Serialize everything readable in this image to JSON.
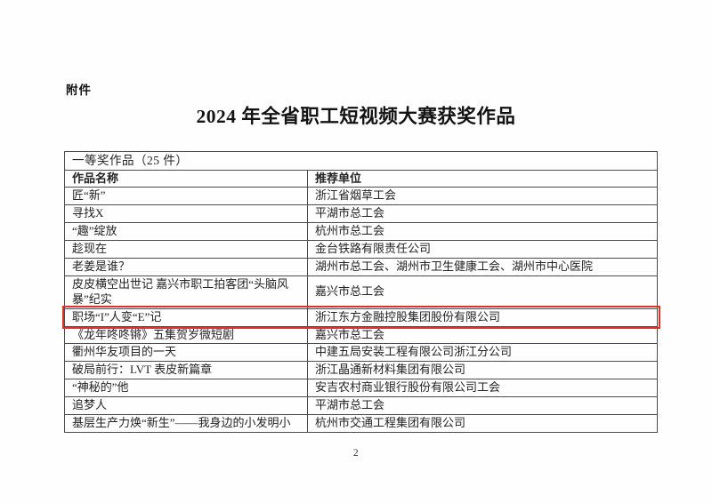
{
  "page": {
    "attachment_label": "附件",
    "title": "2024 年全省职工短视频大赛获奖作品",
    "page_number": "2"
  },
  "colors": {
    "highlight_box_red": "#de3226",
    "table_border": "#4c4c4c",
    "text": "#232323"
  },
  "table": {
    "group_header": "一等奖作品（25 件）",
    "columns": [
      "作品名称",
      "推荐单位"
    ],
    "rows": [
      {
        "name": "匠“新”",
        "unit": "浙江省烟草工会",
        "highlighted": false,
        "wrap": false
      },
      {
        "name": "寻找X",
        "unit": "平湖市总工会",
        "highlighted": false,
        "wrap": false
      },
      {
        "name": "“趣”绽放",
        "unit": "杭州市总工会",
        "highlighted": false,
        "wrap": false
      },
      {
        "name": "趁现在",
        "unit": "金台铁路有限责任公司",
        "highlighted": false,
        "wrap": false
      },
      {
        "name": "老姜是谁？",
        "unit": "湖州市总工会、湖州市卫生健康工会、湖州市中心医院",
        "highlighted": false,
        "wrap": false
      },
      {
        "name": "皮皮横空出世记 嘉兴市职工拍客团“头脑风暴”纪实",
        "unit": "嘉兴市总工会",
        "highlighted": false,
        "wrap": true
      },
      {
        "name": "职场“I”人变“E”记",
        "unit": "浙江东方金融控股集团股份有限公司",
        "highlighted": true,
        "wrap": false
      },
      {
        "name": "《龙年咚咚锵》五集贺岁微短剧",
        "unit": "嘉兴市总工会",
        "highlighted": false,
        "wrap": false
      },
      {
        "name": "衢州华友项目的一天",
        "unit": "中建五局安装工程有限公司浙江分公司",
        "highlighted": false,
        "wrap": false
      },
      {
        "name": "破局前行：LVT 表皮新篇章",
        "unit": "浙江晶通新材料集团有限公司",
        "highlighted": false,
        "wrap": false
      },
      {
        "name": "“神秘的”他",
        "unit": "安吉农村商业银行股份有限公司工会",
        "highlighted": false,
        "wrap": false
      },
      {
        "name": "追梦人",
        "unit": "平湖市总工会",
        "highlighted": false,
        "wrap": false
      },
      {
        "name": "基层生产力焕“新生”——我身边的小发明小",
        "unit": "杭州市交通工程集团有限公司",
        "highlighted": false,
        "wrap": false
      }
    ]
  }
}
